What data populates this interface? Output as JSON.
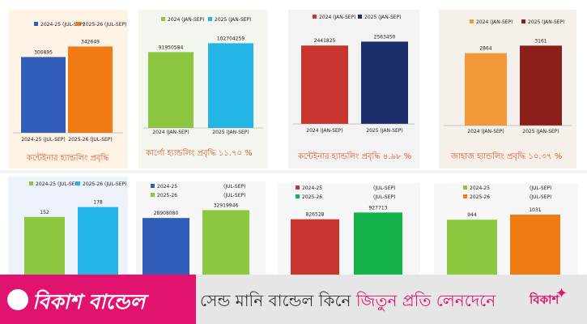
{
  "colors": {
    "blue": "#2f5db8",
    "orange": "#f07a14",
    "green": "#8dc63f",
    "cyan": "#22b5e6",
    "red": "#c8352e",
    "navy": "#1c2f6b",
    "lightorange": "#f29a3a",
    "darkred": "#8a1f1a",
    "emerald": "#15b34a",
    "pink": "#e2136e"
  },
  "chart_data": [
    {
      "type": "bar",
      "legend": [
        "2024-25 (JUL-SEP)",
        "2025-26 (JUL-SEP)"
      ],
      "categories": [
        "2024-25 (JUL-SEP)",
        "2025-26 (JUL-SEP)"
      ],
      "values": [
        300895,
        342649
      ],
      "value_labels": [
        "300895",
        "342649"
      ],
      "caption": "কন্টেইনার হ্যান্ডলিং প্রবৃদ্ধি",
      "colors": [
        "#2f5db8",
        "#f07a14"
      ],
      "ylim": [
        0,
        360000
      ]
    },
    {
      "type": "bar",
      "legend": [
        "2024 (JAN-SEP)",
        "2025 (JAN-SEP)"
      ],
      "categories": [
        "2024 (JAN-SEP)",
        "2025 (JAN-SEP)"
      ],
      "values": [
        91950584,
        102704259
      ],
      "value_labels": [
        "91950584",
        "102704259"
      ],
      "caption": "কার্গো হ্যান্ডলিং প্রবৃদ্ধি ১১.৭০ %",
      "colors": [
        "#8dc63f",
        "#22b5e6"
      ],
      "ylim": [
        0,
        108000000
      ]
    },
    {
      "type": "bar",
      "legend": [
        "2024 (JAN-SEP)",
        "2025 (JAN-SEP)"
      ],
      "categories": [
        "2024 (JAN-SEP)",
        "2025 (JAN-SEP)"
      ],
      "values": [
        2441825,
        2563450
      ],
      "value_labels": [
        "2441825",
        "2563450"
      ],
      "caption": "কন্টেইনার হ্যান্ডলিং প্রবৃদ্ধি ৪.৯৮ %",
      "colors": [
        "#c8352e",
        "#1c2f6b"
      ],
      "ylim": [
        0,
        2700000
      ]
    },
    {
      "type": "bar",
      "legend": [
        "2024 (JAN-SEP)",
        "2025 (JAN-SEP)"
      ],
      "categories": [
        "2024 (JAN-SEP)",
        "2025 (JAN-SEP)"
      ],
      "values": [
        2864,
        3161
      ],
      "value_labels": [
        "2864",
        "3161"
      ],
      "caption": "জাহাজ হ্যান্ডলিং প্রবৃদ্ধি ১০.৩৭ %",
      "colors": [
        "#f29a3a",
        "#8a1f1a"
      ],
      "ylim": [
        0,
        3300
      ]
    },
    {
      "type": "bar",
      "legend": [
        "2024-25 (JUL-SEP)",
        "2025-26 (JUL-SEP)"
      ],
      "values": [
        152,
        178
      ],
      "value_labels": [
        "152",
        "178"
      ],
      "colors": [
        "#8dc63f",
        "#22b5e6"
      ],
      "ylim": [
        0,
        190
      ]
    },
    {
      "type": "bar",
      "legend": [
        "2024-25",
        "2025-26"
      ],
      "legend_right": [
        "(JUL-SEP)",
        "(JUL-SEP)"
      ],
      "values": [
        28908080,
        32919946
      ],
      "value_labels": [
        "28908080",
        "32919946"
      ],
      "colors": [
        "#2f5db8",
        "#8dc63f"
      ],
      "ylim": [
        0,
        36000000
      ]
    },
    {
      "type": "bar",
      "legend": [
        "2024-25",
        "2025-26"
      ],
      "legend_right": [
        "(JUL-SEP)",
        "(JUL-SEP)"
      ],
      "values": [
        826528,
        927713
      ],
      "value_labels": [
        "826528",
        "927713"
      ],
      "colors": [
        "#c8352e",
        "#15b34a"
      ],
      "ylim": [
        0,
        980000
      ]
    },
    {
      "type": "bar",
      "legend": [
        "2024-25",
        "2025-26"
      ],
      "legend_right": [
        "(JUL-SEP)",
        "(JUL-SEP)"
      ],
      "values": [
        944,
        1031
      ],
      "value_labels": [
        "944",
        "1031"
      ],
      "colors": [
        "#8dc63f",
        "#f07a14"
      ],
      "ylim": [
        0,
        1100
      ]
    }
  ],
  "ad": {
    "brand": "বিকাশ বান্ডেল",
    "text_main": "সেন্ড মানি বান্ডেল কিনে ",
    "text_highlight": "জিতুন প্রতি লেনদেনে",
    "logo_text": "বিকাশ"
  }
}
